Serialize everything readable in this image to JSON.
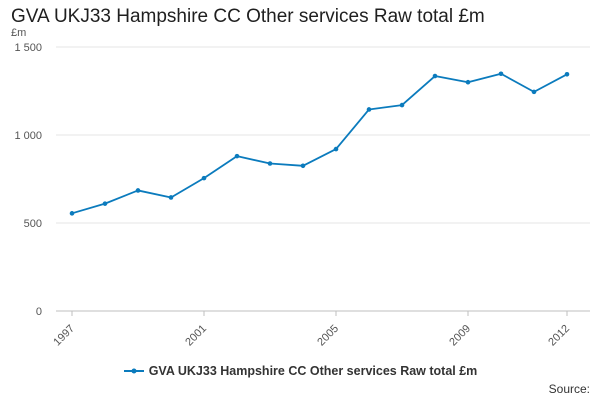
{
  "chart_data": {
    "type": "line",
    "title": "GVA UKJ33 Hampshire CC Other services Raw total £m",
    "ylabel": "£m",
    "xlabel": "",
    "x": [
      1997,
      1998,
      1999,
      2000,
      2001,
      2002,
      2003,
      2004,
      2005,
      2006,
      2007,
      2008,
      2009,
      2010,
      2011,
      2012
    ],
    "series": [
      {
        "name": "GVA UKJ33 Hampshire CC Other services Raw total £m",
        "values": [
          555,
          610,
          685,
          645,
          755,
          880,
          838,
          825,
          920,
          1145,
          1170,
          1335,
          1300,
          1348,
          1245,
          1345
        ]
      }
    ],
    "xlim": [
      1997,
      2012
    ],
    "ylim": [
      0,
      1500
    ],
    "x_ticks": [
      "1997",
      "2001",
      "2005",
      "2009",
      "2012"
    ],
    "y_ticks": [
      "0",
      "500",
      "1 000",
      "1 500"
    ],
    "grid": "horizontal",
    "legend": "bottom-center",
    "line_color": "#0b7bbd",
    "source_label": "Source:"
  }
}
